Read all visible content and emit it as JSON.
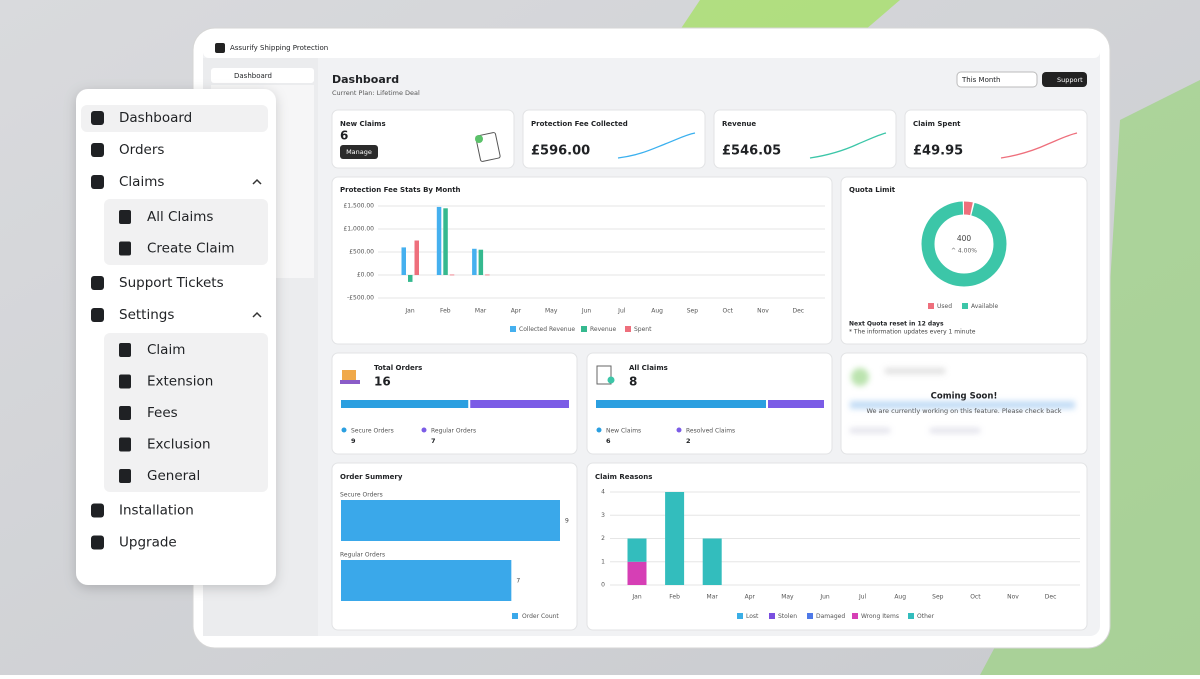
{
  "app_title": "Assurify Shipping Protection",
  "app_sidebar": {
    "item": "Dashboard"
  },
  "header": {
    "title": "Dashboard",
    "subtitle": "Current Plan: Lifetime Deal",
    "period": "This Month",
    "support": "Support"
  },
  "stats": [
    {
      "label": "New Claims",
      "value": "6",
      "button": "Manage"
    },
    {
      "label": "Protection Fee Collected",
      "value": "£596.00"
    },
    {
      "label": "Revenue",
      "value": "£546.05"
    },
    {
      "label": "Claim Spent",
      "value": "£49.95"
    }
  ],
  "fee_chart": {
    "type": "bar",
    "title": "Protection Fee Stats By Month",
    "categories": [
      "Jan",
      "Feb",
      "Mar",
      "Apr",
      "May",
      "Jun",
      "Jul",
      "Aug",
      "Sep",
      "Oct",
      "Nov",
      "Dec"
    ],
    "series": [
      {
        "name": "Collected Revenue",
        "color": "#45b0ef",
        "values": [
          600,
          1480,
          570,
          null,
          null,
          null,
          null,
          null,
          null,
          null,
          null,
          null
        ]
      },
      {
        "name": "Revenue",
        "color": "#35b98f",
        "values": [
          -150,
          1450,
          550,
          null,
          null,
          null,
          null,
          null,
          null,
          null,
          null,
          null
        ]
      },
      {
        "name": "Spent",
        "color": "#ee6f7c",
        "values": [
          750,
          10,
          10,
          null,
          null,
          null,
          null,
          null,
          null,
          null,
          null,
          null
        ]
      }
    ],
    "ylim": [
      -500,
      1500
    ],
    "yticks": [
      {
        "value": 1500,
        "label": "£1,500.00"
      },
      {
        "value": 1000,
        "label": "£1,000.00"
      },
      {
        "value": 500,
        "label": "£500.00"
      },
      {
        "value": 0,
        "label": "£0.00"
      },
      {
        "value": -500,
        "label": "-£500.00"
      }
    ],
    "grid": true
  },
  "quota": {
    "type": "pie",
    "title": "Quota Limit",
    "total": "400",
    "change": "^ 4.00%",
    "segments": [
      {
        "name": "Used",
        "color": "#ee6f7c",
        "value": 4
      },
      {
        "name": "Available",
        "color": "#3cc6a8",
        "value": 96
      }
    ],
    "reset_note": "Next Quota reset in 12 days",
    "update_note": "* The information updates every 1 minute"
  },
  "orders": {
    "title": "Total Orders",
    "total": "16",
    "segments": [
      {
        "name": "Secure Orders",
        "color": "#2b9fe0",
        "value": 9
      },
      {
        "name": "Regular Orders",
        "color": "#7b5ce6",
        "value": 7
      }
    ]
  },
  "claims": {
    "title": "All Claims",
    "total": "8",
    "segments": [
      {
        "name": "New Claims",
        "color": "#2b9fe0",
        "value": 6
      },
      {
        "name": "Resolved Claims",
        "color": "#7b5ce6",
        "value": 2
      }
    ]
  },
  "coming_soon": {
    "title": "Coming Soon!",
    "message": "We are currently working on this feature. Please check back"
  },
  "order_summary": {
    "type": "bar",
    "title": "Order Summery",
    "categories": [
      "Secure Orders",
      "Regular Orders"
    ],
    "values": [
      9,
      7
    ],
    "series_name": "Order Count",
    "color": "#3aa8ea"
  },
  "claim_reasons": {
    "type": "stacked-bar",
    "title": "Claim Reasons",
    "categories": [
      "Jan",
      "Feb",
      "Mar",
      "Apr",
      "May",
      "Jun",
      "Jul",
      "Aug",
      "Sep",
      "Oct",
      "Nov",
      "Dec"
    ],
    "series": [
      {
        "name": "Lost",
        "color": "#3aaee6",
        "values": [
          null,
          null,
          null,
          null,
          null,
          null,
          null,
          null,
          null,
          null,
          null,
          null
        ]
      },
      {
        "name": "Stolen",
        "color": "#7a4fe0",
        "values": [
          null,
          null,
          null,
          null,
          null,
          null,
          null,
          null,
          null,
          null,
          null,
          null
        ]
      },
      {
        "name": "Damaged",
        "color": "#4e79e8",
        "values": [
          null,
          null,
          null,
          null,
          null,
          null,
          null,
          null,
          null,
          null,
          null,
          null
        ]
      },
      {
        "name": "Wrong Items",
        "color": "#d63fb5",
        "values": [
          1,
          null,
          null,
          null,
          null,
          null,
          null,
          null,
          null,
          null,
          null,
          null
        ]
      },
      {
        "name": "Other",
        "color": "#33bdbd",
        "values": [
          1,
          4,
          2,
          null,
          null,
          null,
          null,
          null,
          null,
          null,
          null,
          null
        ]
      }
    ],
    "ylim": [
      0,
      4
    ],
    "yticks": [
      0,
      1,
      2,
      3,
      4
    ],
    "grid": true
  },
  "menu": {
    "items": [
      {
        "label": "Dashboard"
      },
      {
        "label": "Orders"
      },
      {
        "label": "Claims",
        "children": [
          "All Claims",
          "Create Claim"
        ]
      },
      {
        "label": "Support Tickets"
      },
      {
        "label": "Settings",
        "children": [
          "Claim",
          "Extension",
          "Fees",
          "Exclusion",
          "General"
        ]
      },
      {
        "label": "Installation"
      },
      {
        "label": "Upgrade"
      }
    ]
  }
}
